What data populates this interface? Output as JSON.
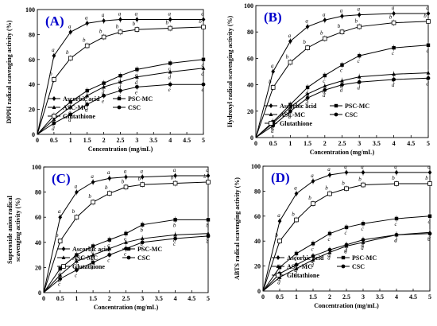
{
  "chart_data": [
    {
      "panel": "(A)",
      "type": "line",
      "xlabel": "Concentration (mg/mL)",
      "ylabel": "DPPH radical scavenging activity (%)",
      "xlim": [
        0,
        5
      ],
      "ylim": [
        0,
        100
      ],
      "xticks": [
        "0",
        "0.5",
        "1",
        "1.5",
        "2",
        "2.5",
        "3",
        "3.5",
        "4",
        "4.5",
        "5"
      ],
      "yticks": [
        "0",
        "20",
        "40",
        "60",
        "80",
        "100"
      ],
      "x": [
        0,
        0.5,
        1,
        1.5,
        2,
        2.5,
        3,
        4,
        5
      ],
      "series": [
        {
          "name": "Ascorbic acid",
          "marker": "diamond",
          "values": [
            0,
            63,
            82,
            89,
            91,
            92,
            92,
            92,
            92
          ],
          "labels": [
            "",
            "a",
            "a",
            "a",
            "a",
            "a",
            "a",
            "a",
            "a"
          ]
        },
        {
          "name": "PSC-MC",
          "marker": "square",
          "values": [
            0,
            15,
            26,
            35,
            41,
            47,
            52,
            57,
            60
          ],
          "labels": [
            "",
            "c",
            "c",
            "c",
            "c",
            "c",
            "c",
            "c",
            "c"
          ]
        },
        {
          "name": "ASC-MC",
          "marker": "triangle",
          "values": [
            0,
            12,
            22,
            31,
            38,
            42,
            46,
            50,
            53
          ],
          "labels": [
            "",
            "c",
            "c",
            "c",
            "d",
            "d",
            "d",
            "d",
            "d"
          ]
        },
        {
          "name": "CSC",
          "marker": "circle",
          "values": [
            0,
            9,
            16,
            24,
            31,
            35,
            38,
            40,
            40
          ],
          "labels": [
            "",
            "d",
            "d",
            "d",
            "e",
            "e",
            "e",
            "e",
            "e"
          ]
        },
        {
          "name": "Glutathione",
          "marker": "open-square",
          "values": [
            0,
            44,
            61,
            71,
            78,
            82,
            84,
            85,
            86
          ],
          "labels": [
            "",
            "b",
            "b",
            "b",
            "b",
            "b",
            "b",
            "b",
            "b"
          ]
        }
      ],
      "legend": "bottom"
    },
    {
      "panel": "(B)",
      "type": "line",
      "xlabel": "Concentration (mg/mL)",
      "ylabel": "Hydroxyl radical scavenging activity (%)",
      "xlim": [
        0,
        5
      ],
      "ylim": [
        0,
        100
      ],
      "xticks": [
        "0",
        "0.5",
        "1",
        "1.5",
        "2",
        "2.5",
        "3",
        "3.5",
        "4",
        "4.5",
        "5"
      ],
      "yticks": [
        "0",
        "20",
        "40",
        "60",
        "80",
        "100"
      ],
      "x": [
        0,
        0.5,
        1,
        1.5,
        2,
        2.5,
        3,
        4,
        5
      ],
      "series": [
        {
          "name": "Ascorbic acid",
          "marker": "diamond",
          "values": [
            0,
            50,
            73,
            84,
            89,
            92,
            93,
            94,
            94
          ],
          "labels": [
            "",
            "a",
            "a",
            "a",
            "a",
            "a",
            "a",
            "a",
            "a"
          ]
        },
        {
          "name": "PSC-MC",
          "marker": "square",
          "values": [
            0,
            12,
            25,
            38,
            47,
            55,
            62,
            68,
            70
          ],
          "labels": [
            "",
            "c",
            "c",
            "c",
            "c",
            "c",
            "c",
            "c",
            "c"
          ]
        },
        {
          "name": "ASC-MC",
          "marker": "triangle",
          "values": [
            0,
            11,
            23,
            33,
            39,
            43,
            46,
            48,
            49
          ],
          "labels": [
            "",
            "d",
            "d",
            "d",
            "d",
            "d",
            "d",
            "d",
            "d"
          ]
        },
        {
          "name": "CSC",
          "marker": "circle",
          "values": [
            0,
            9,
            20,
            30,
            36,
            40,
            42,
            44,
            45
          ],
          "labels": [
            "",
            "d",
            "d",
            "d",
            "d",
            "d",
            "d",
            "d",
            "d"
          ]
        },
        {
          "name": "Glutathione",
          "marker": "open-square",
          "values": [
            0,
            38,
            57,
            68,
            75,
            80,
            84,
            87,
            88
          ],
          "labels": [
            "",
            "b",
            "b",
            "b",
            "b",
            "b",
            "b",
            "b",
            "b"
          ]
        }
      ],
      "legend": "bottom"
    },
    {
      "panel": "(C)",
      "type": "line",
      "xlabel": "Concentration (mg/mL)",
      "ylabel": "Superoxide anion radical scavenging activity (%)",
      "xlim": [
        0,
        5
      ],
      "ylim": [
        0,
        100
      ],
      "xticks": [
        "0",
        "0.5",
        "1",
        "1.5",
        "2",
        "2.5",
        "3",
        "3.5",
        "4",
        "4.5",
        "5"
      ],
      "yticks": [
        "0",
        "20",
        "40",
        "60",
        "80",
        "100"
      ],
      "x": [
        0,
        0.5,
        1,
        1.5,
        2,
        2.5,
        3,
        4,
        5
      ],
      "series": [
        {
          "name": "Ascorbic acid",
          "marker": "diamond",
          "values": [
            0,
            60,
            80,
            88,
            91,
            92,
            92,
            93,
            93
          ],
          "labels": [
            "",
            "a",
            "a",
            "a",
            "a",
            "a",
            "a",
            "a",
            "a"
          ]
        },
        {
          "name": "PSC-MC",
          "marker": "square",
          "values": [
            0,
            19,
            30,
            37,
            42,
            47,
            54,
            58,
            58
          ],
          "labels": [
            "",
            "c",
            "c",
            "c",
            "c",
            "c",
            "b",
            "b",
            "b"
          ]
        },
        {
          "name": "ASC-MC",
          "marker": "triangle",
          "values": [
            0,
            14,
            25,
            30,
            35,
            40,
            43,
            46,
            47
          ],
          "labels": [
            "",
            "d",
            "c",
            "c",
            "c",
            "c",
            "c",
            "c",
            "c"
          ]
        },
        {
          "name": "CSC",
          "marker": "circle",
          "values": [
            0,
            11,
            18,
            24,
            30,
            35,
            40,
            43,
            45
          ],
          "labels": [
            "",
            "c",
            "c",
            "c",
            "c",
            "c",
            "c",
            "c",
            "c"
          ]
        },
        {
          "name": "Glutathione",
          "marker": "open-square",
          "values": [
            0,
            41,
            60,
            72,
            79,
            84,
            86,
            87,
            88
          ],
          "labels": [
            "",
            "b",
            "b",
            "b",
            "b",
            "b",
            "b",
            "b",
            "b"
          ]
        }
      ],
      "legend": "bottom"
    },
    {
      "panel": "(D)",
      "type": "line",
      "xlabel": "Concentration (mg/mL)",
      "ylabel": "ABTS radical scavenging activity (%)",
      "xlim": [
        0,
        5
      ],
      "ylim": [
        0,
        100
      ],
      "xticks": [
        "0",
        "0.5",
        "1",
        "1.5",
        "2",
        "2.5",
        "3",
        "3.5",
        "4",
        "4.5",
        "5"
      ],
      "yticks": [
        "0",
        "20",
        "40",
        "60",
        "80",
        "100"
      ],
      "x": [
        0,
        0.5,
        1,
        1.5,
        2,
        2.5,
        3,
        4,
        5
      ],
      "series": [
        {
          "name": "Ascorbic acid",
          "marker": "diamond",
          "values": [
            0,
            56,
            78,
            88,
            93,
            95,
            95,
            95,
            95
          ],
          "labels": [
            "",
            "a",
            "a",
            "a",
            "a",
            "a",
            "a",
            "a",
            "a"
          ]
        },
        {
          "name": "PSC-MC",
          "marker": "square",
          "values": [
            0,
            19,
            30,
            38,
            46,
            51,
            54,
            58,
            60
          ],
          "labels": [
            "",
            "c",
            "c",
            "c",
            "c",
            "c",
            "c",
            "c",
            "c"
          ]
        },
        {
          "name": "ASC-MC",
          "marker": "triangle",
          "values": [
            0,
            11,
            18,
            25,
            31,
            36,
            39,
            45,
            47
          ],
          "labels": [
            "",
            "d",
            "d",
            "d",
            "d",
            "d",
            "d",
            "d",
            "d"
          ]
        },
        {
          "name": "CSC",
          "marker": "circle",
          "values": [
            0,
            14,
            21,
            28,
            33,
            37,
            41,
            45,
            46
          ],
          "labels": [
            "",
            "d",
            "d",
            "d",
            "d",
            "d",
            "d",
            "d",
            "d"
          ]
        },
        {
          "name": "Glutathione",
          "marker": "open-square",
          "values": [
            0,
            40,
            57,
            70,
            78,
            82,
            85,
            86,
            86
          ],
          "labels": [
            "",
            "b",
            "b",
            "b",
            "b",
            "b",
            "b",
            "b",
            "b"
          ]
        }
      ],
      "legend": "bottom"
    }
  ]
}
